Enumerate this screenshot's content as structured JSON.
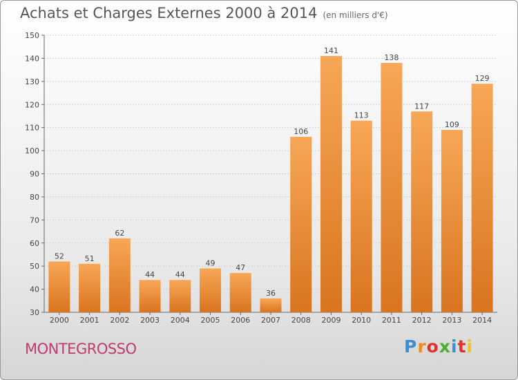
{
  "header": {
    "title": "Achats et Charges Externes 2000 à 2014",
    "unit": "(en milliers d'€)"
  },
  "footer": {
    "city": "MONTEGROSSO",
    "brand": "Proxiti"
  },
  "colors": {
    "bar_top": "#f7a756",
    "bar_bottom": "#d9741f",
    "grid": "#cfcfcf",
    "city": "#c03a6b"
  },
  "chart_data": {
    "type": "bar",
    "title": "Achats et Charges Externes 2000 à 2014",
    "subtitle": "(en milliers d'€)",
    "categories": [
      "2000",
      "2001",
      "2002",
      "2003",
      "2004",
      "2005",
      "2006",
      "2007",
      "2008",
      "2009",
      "2010",
      "2011",
      "2012",
      "2013",
      "2014"
    ],
    "values": [
      52,
      51,
      62,
      44,
      44,
      49,
      47,
      36,
      106,
      141,
      113,
      138,
      117,
      109,
      129
    ],
    "ylim": [
      30,
      150
    ],
    "yticks": [
      30,
      40,
      50,
      60,
      70,
      80,
      90,
      100,
      110,
      120,
      130,
      140,
      150
    ],
    "grid": true,
    "legend": "none"
  }
}
